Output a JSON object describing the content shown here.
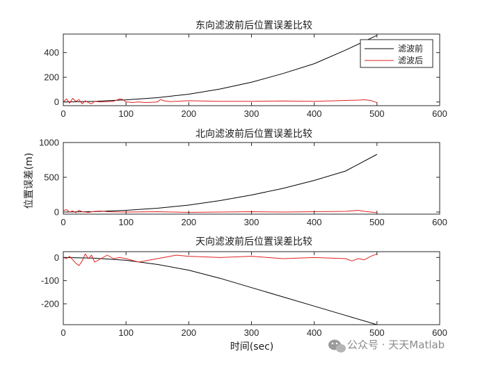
{
  "colors": {
    "before": "#000000",
    "after": "#e02020",
    "axis": "#262626"
  },
  "xlabel": "时间(sec)",
  "ylabel": "位置误差(m)",
  "watermark": {
    "text": "公众号 · 天天Matlab",
    "icon": "wechat-icon"
  },
  "chart_data": [
    {
      "type": "line",
      "title": "东向滤波前后位置误差比较",
      "xlim": [
        0,
        600
      ],
      "ylim": [
        -30,
        550
      ],
      "xticks": [
        0,
        100,
        200,
        300,
        400,
        500,
        600
      ],
      "yticks": [
        0,
        200,
        400
      ],
      "legend": {
        "placement": "top-right",
        "entries": [
          "滤波前",
          "滤波后"
        ]
      },
      "series": [
        {
          "name": "滤波前",
          "x": [
            0,
            50,
            100,
            150,
            200,
            250,
            300,
            350,
            400,
            450,
            500
          ],
          "y": [
            0,
            5,
            17,
            35,
            63,
            105,
            160,
            230,
            310,
            420,
            540
          ]
        },
        {
          "name": "滤波后",
          "x": [
            0,
            5,
            10,
            15,
            20,
            25,
            30,
            35,
            40,
            45,
            50,
            60,
            70,
            80,
            90,
            95,
            100,
            110,
            120,
            130,
            140,
            150,
            155,
            160,
            170,
            180,
            200,
            250,
            300,
            350,
            400,
            450,
            470,
            480,
            490,
            500
          ],
          "y": [
            0,
            25,
            -10,
            30,
            5,
            20,
            -15,
            10,
            -5,
            -15,
            5,
            0,
            3,
            5,
            25,
            20,
            0,
            -5,
            0,
            -5,
            -3,
            0,
            20,
            10,
            3,
            5,
            10,
            5,
            5,
            8,
            5,
            12,
            15,
            18,
            12,
            -5
          ]
        }
      ]
    },
    {
      "type": "line",
      "title": "北向滤波前后位置误差比较",
      "xlim": [
        0,
        600
      ],
      "ylim": [
        -30,
        1000
      ],
      "xticks": [
        0,
        100,
        200,
        300,
        400,
        500,
        600
      ],
      "yticks": [
        0,
        500,
        1000
      ],
      "series": [
        {
          "name": "滤波前",
          "x": [
            0,
            50,
            100,
            150,
            200,
            250,
            300,
            350,
            400,
            450,
            500
          ],
          "y": [
            0,
            6,
            25,
            55,
            100,
            165,
            245,
            340,
            455,
            590,
            830
          ]
        },
        {
          "name": "滤波后",
          "x": [
            0,
            5,
            10,
            15,
            20,
            25,
            30,
            40,
            50,
            60,
            70,
            100,
            150,
            200,
            250,
            300,
            350,
            400,
            450,
            470,
            480,
            500
          ],
          "y": [
            20,
            35,
            0,
            15,
            -10,
            25,
            5,
            -5,
            10,
            15,
            5,
            0,
            5,
            -5,
            0,
            5,
            0,
            5,
            10,
            25,
            10,
            -10
          ]
        }
      ]
    },
    {
      "type": "line",
      "title": "天向滤波前后位置误差比较",
      "xlim": [
        0,
        600
      ],
      "ylim": [
        -290,
        25
      ],
      "xticks": [
        0,
        100,
        200,
        300,
        400,
        500,
        600
      ],
      "yticks": [
        -200,
        -100,
        0
      ],
      "series": [
        {
          "name": "滤波前",
          "x": [
            0,
            50,
            100,
            150,
            200,
            250,
            300,
            350,
            400,
            450,
            500
          ],
          "y": [
            0,
            -3,
            -12,
            -30,
            -55,
            -90,
            -130,
            -170,
            -210,
            -250,
            -290
          ]
        },
        {
          "name": "滤波后",
          "x": [
            0,
            5,
            10,
            15,
            20,
            25,
            30,
            35,
            40,
            45,
            50,
            60,
            70,
            80,
            90,
            100,
            120,
            140,
            160,
            180,
            200,
            250,
            300,
            350,
            400,
            450,
            460,
            470,
            480,
            490,
            500
          ],
          "y": [
            0,
            -5,
            5,
            -10,
            -25,
            -35,
            -15,
            15,
            -5,
            10,
            -20,
            -5,
            10,
            -5,
            0,
            -5,
            -20,
            -10,
            0,
            10,
            5,
            0,
            5,
            -5,
            0,
            -5,
            -15,
            -5,
            -10,
            5,
            15
          ]
        }
      ]
    }
  ]
}
